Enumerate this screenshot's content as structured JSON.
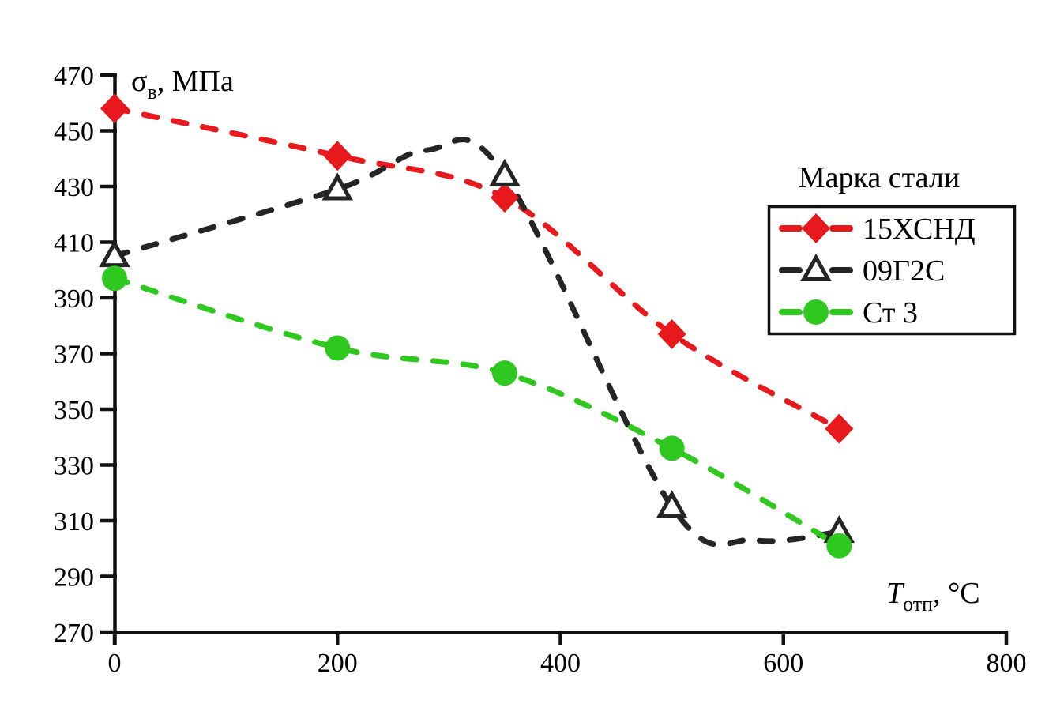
{
  "chart_data": {
    "type": "line",
    "title": "",
    "legend_title": "Марка стали",
    "legend_position": "right",
    "grid": false,
    "ylabel": "σв, МПа",
    "ylabel_main": "σ",
    "ylabel_sub": "в",
    "ylabel_rest": ", МПа",
    "xlabel": "Tотп, °C",
    "xlabel_main": "T",
    "xlabel_sub": "отп",
    "xlabel_rest": ", °C",
    "x": [
      0,
      200,
      350,
      500,
      650
    ],
    "series": [
      {
        "name": "15ХСНД",
        "color": "#e8191c",
        "marker": "diamond",
        "values": [
          458,
          441,
          426,
          377,
          343
        ],
        "curve_extra": []
      },
      {
        "name": "09Г2С",
        "color": "#252525",
        "marker": "triangle-open",
        "values": [
          405,
          429,
          434,
          315,
          306
        ],
        "curve_extra": [
          [
            280,
            443
          ],
          [
            575,
            303
          ]
        ]
      },
      {
        "name": "Ст 3",
        "color": "#2ec81e",
        "marker": "circle",
        "values": [
          397,
          372,
          363,
          336,
          301
        ],
        "curve_extra": []
      }
    ],
    "xlim": [
      0,
      800
    ],
    "ylim": [
      270,
      470
    ],
    "xticks": [
      0,
      200,
      400,
      600,
      800
    ],
    "yticks": [
      470,
      450,
      430,
      410,
      390,
      370,
      350,
      330,
      310,
      290,
      270
    ]
  }
}
